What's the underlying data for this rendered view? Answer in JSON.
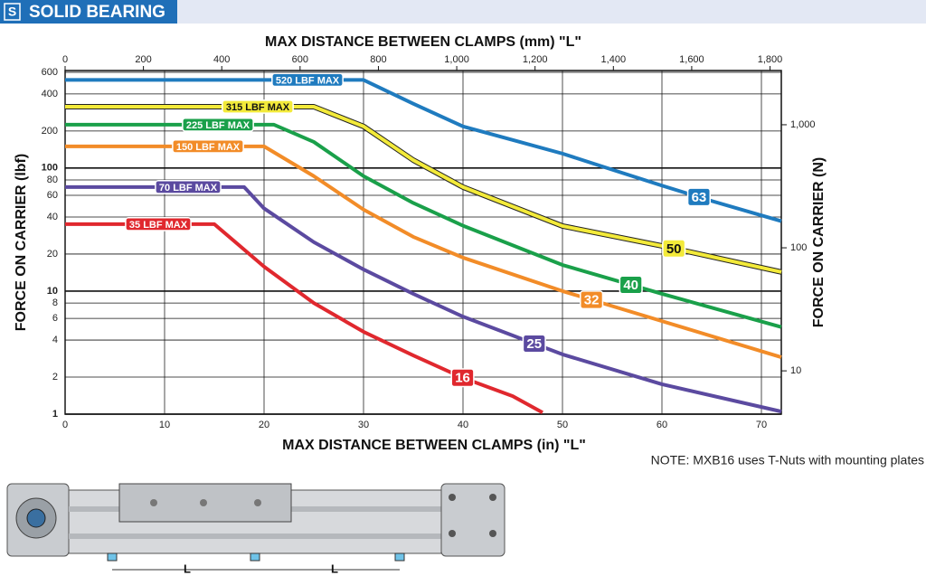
{
  "header": {
    "badge": "S",
    "title": "SOLID BEARING"
  },
  "chart_data": {
    "type": "line",
    "title_top": "MAX DISTANCE BETWEEN CLAMPS (mm) \"L\"",
    "x_label": "MAX DISTANCE BETWEEN CLAMPS (in) \"L\"",
    "y_label": "FORCE ON CARRIER (lbf)",
    "y2_label": "FORCE ON CARRIER (N)",
    "note": "NOTE: MXB16 uses T-Nuts with mounting plates",
    "xlim": [
      0,
      72
    ],
    "xticks": [
      0,
      10,
      20,
      30,
      40,
      50,
      60,
      70
    ],
    "x2lim": [
      0,
      1828.8
    ],
    "x2ticks": [
      0,
      200,
      400,
      600,
      800,
      {
        "value": 1000,
        "label": "1,000"
      },
      {
        "value": 1200,
        "label": "1,200"
      },
      {
        "value": 1400,
        "label": "1,400"
      },
      {
        "value": 1600,
        "label": "1,600"
      },
      {
        "value": 1800,
        "label": "1,800"
      }
    ],
    "ylim": [
      1,
      620
    ],
    "ylog": true,
    "yticks": [
      1,
      2,
      4,
      6,
      8,
      10,
      20,
      40,
      60,
      80,
      100,
      200,
      400,
      600
    ],
    "y2lim": [
      4.448,
      2758
    ],
    "y2ticks": [
      10,
      100,
      {
        "value": 1000,
        "label": "1,000"
      }
    ],
    "grid": true,
    "series": [
      {
        "name": "63",
        "max_label": "520 LBF MAX",
        "color": "#1f7bbf",
        "x": [
          0,
          30,
          35,
          40,
          45,
          50,
          55,
          60,
          65,
          72
        ],
        "values": [
          520,
          520,
          333,
          218,
          169,
          131,
          97,
          72,
          54,
          37
        ]
      },
      {
        "name": "50",
        "max_label": "315 LBF MAX",
        "color": "#f3ea3a",
        "x": [
          0,
          25,
          30,
          35,
          40,
          50,
          60,
          72
        ],
        "values": [
          315,
          315,
          218,
          116,
          70,
          33.8,
          23.3,
          14.3
        ]
      },
      {
        "name": "40",
        "max_label": "225 LBF MAX",
        "color": "#1aa04a",
        "x": [
          0,
          21,
          25,
          30,
          35,
          40,
          50,
          60,
          72
        ],
        "values": [
          225,
          225,
          163,
          86,
          52,
          34,
          16.3,
          9.5,
          5.1
        ]
      },
      {
        "name": "32",
        "max_label": "150 LBF MAX",
        "color": "#f28c28",
        "x": [
          0,
          20,
          25,
          30,
          35,
          40,
          50,
          60,
          72
        ],
        "values": [
          150,
          150,
          86,
          46,
          27.6,
          18.7,
          10,
          5.7,
          2.9
        ]
      },
      {
        "name": "25",
        "max_label": "70 LBF MAX",
        "color": "#5b4aa0",
        "x": [
          0,
          18,
          20,
          25,
          30,
          35,
          40,
          50,
          60,
          72
        ],
        "values": [
          70,
          70,
          47,
          25,
          15,
          9.5,
          6.2,
          3.06,
          1.75,
          1.05
        ]
      },
      {
        "name": "16",
        "max_label": "35 LBF MAX",
        "color": "#e0282e",
        "x": [
          0,
          15,
          20,
          25,
          30,
          35,
          40,
          45,
          48
        ],
        "values": [
          35,
          35,
          15.8,
          8,
          4.67,
          3,
          1.97,
          1.4,
          1.03
        ]
      }
    ]
  },
  "drawing": {
    "dimension_labels": [
      "L",
      "L"
    ]
  }
}
